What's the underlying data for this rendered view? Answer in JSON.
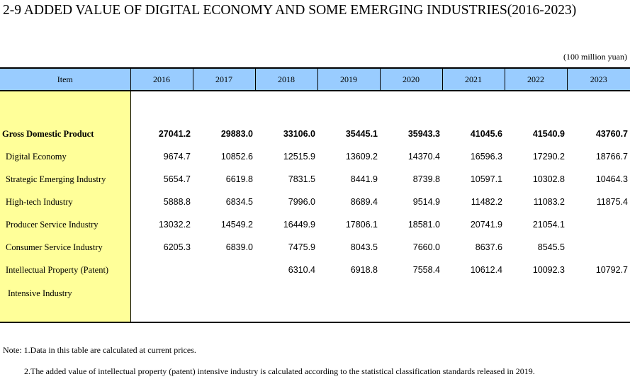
{
  "title": "2-9  ADDED VALUE OF DIGITAL ECONOMY AND SOME EMERGING INDUSTRIES(2016-2023)",
  "unit": "(100 million yuan)",
  "table": {
    "headers": [
      "Item",
      "2016",
      "2017",
      "2018",
      "2019",
      "2020",
      "2021",
      "2022",
      "2023"
    ],
    "rows": [
      {
        "label": "Gross Domestic Product",
        "values": [
          "27041.2",
          "29883.0",
          "33106.0",
          "35445.1",
          "35943.3",
          "41045.6",
          "41540.9",
          "43760.7"
        ]
      },
      {
        "label": "Digital Economy",
        "values": [
          "9674.7",
          "10852.6",
          "12515.9",
          "13609.2",
          "14370.4",
          "16596.3",
          "17290.2",
          "18766.7"
        ]
      },
      {
        "label": "Strategic Emerging Industry",
        "values": [
          "5654.7",
          "6619.8",
          "7831.5",
          "8441.9",
          "8739.8",
          "10597.1",
          "10302.8",
          "10464.3"
        ]
      },
      {
        "label": "High-tech Industry",
        "values": [
          "5888.8",
          "6834.5",
          "7996.0",
          "8689.4",
          "9514.9",
          "11482.2",
          "11083.2",
          "11875.4"
        ]
      },
      {
        "label": "Producer Service Industry",
        "values": [
          "13032.2",
          "14549.2",
          "16449.9",
          "17806.1",
          "18581.0",
          "20741.9",
          "21054.1",
          ""
        ]
      },
      {
        "label": "Consumer Service Industry",
        "values": [
          "6205.3",
          "6839.0",
          "7475.9",
          "8043.5",
          "7660.0",
          "8637.6",
          "8545.5",
          ""
        ]
      },
      {
        "label": "Intellectual Property (Patent)",
        "values": [
          "",
          "",
          "6310.4",
          "6918.8",
          "7558.4",
          "10612.4",
          "10092.3",
          "10792.7"
        ]
      },
      {
        "label": "Intensive Industry",
        "values": [
          "",
          "",
          "",
          "",
          "",
          "",
          "",
          ""
        ]
      }
    ]
  },
  "notes": [
    "Note: 1.Data in this table are calculated at current prices.",
    "2.The added value of intellectual property (patent) intensive industry is calculated according to the statistical classification standards released in 2019."
  ]
}
